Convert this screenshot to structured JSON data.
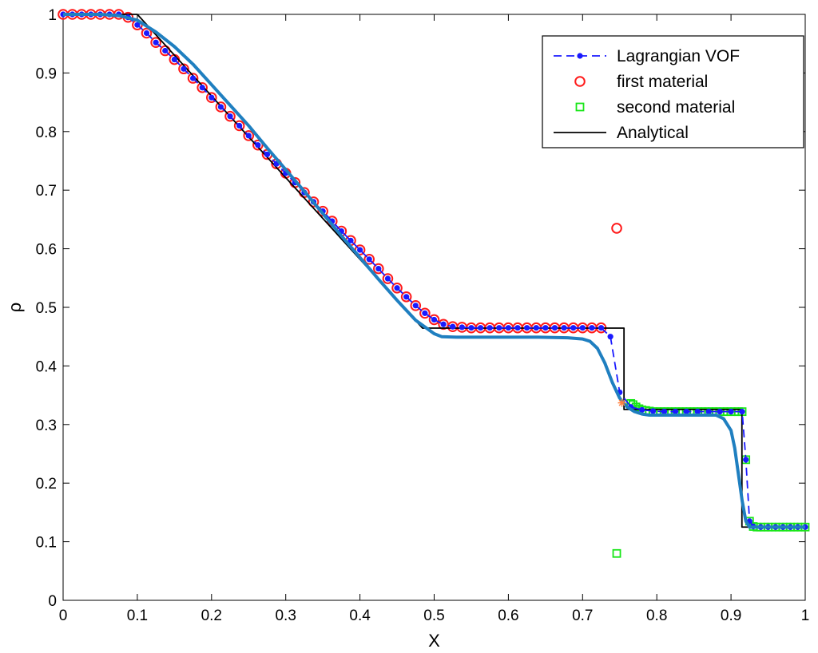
{
  "chart_data": {
    "type": "line",
    "title": "",
    "xlabel": "X",
    "ylabel": "ρ",
    "xlim": [
      0,
      1
    ],
    "ylim": [
      0,
      1
    ],
    "xticks": [
      0,
      0.1,
      0.2,
      0.3,
      0.4,
      0.5,
      0.6,
      0.7,
      0.8,
      0.9,
      1
    ],
    "xtick_labels": [
      "0",
      "0.1",
      "0.2",
      "0.3",
      "0.4",
      "0.5",
      "0.6",
      "0.7",
      "0.8",
      "0.9",
      "1"
    ],
    "yticks": [
      0,
      0.1,
      0.2,
      0.3,
      0.4,
      0.5,
      0.6,
      0.7,
      0.8,
      0.9,
      1
    ],
    "ytick_labels": [
      "0",
      "0.1",
      "0.2",
      "0.3",
      "0.4",
      "0.5",
      "0.6",
      "0.7",
      "0.8",
      "0.9",
      "1"
    ],
    "grid": false,
    "legend_position": "top-right",
    "colors": {
      "lagrangian": "#1a1aff",
      "first": "#ff1a1a",
      "second": "#19e619",
      "analytical": "#000000",
      "smooth": "#1f7fc0",
      "marker": "#ff8040"
    },
    "series": [
      {
        "name": "Lagrangian VOF",
        "style": "dashed-dot",
        "x": [
          0,
          0.0125,
          0.025,
          0.0375,
          0.05,
          0.0625,
          0.075,
          0.0875,
          0.1,
          0.1125,
          0.125,
          0.1375,
          0.15,
          0.1625,
          0.175,
          0.1875,
          0.2,
          0.2125,
          0.225,
          0.2375,
          0.25,
          0.2625,
          0.275,
          0.2875,
          0.3,
          0.3125,
          0.325,
          0.3375,
          0.35,
          0.3625,
          0.375,
          0.3875,
          0.4,
          0.4125,
          0.425,
          0.4375,
          0.45,
          0.4625,
          0.475,
          0.4875,
          0.5,
          0.5125,
          0.525,
          0.5375,
          0.55,
          0.5625,
          0.575,
          0.5875,
          0.6,
          0.6125,
          0.625,
          0.6375,
          0.65,
          0.6625,
          0.675,
          0.6875,
          0.7,
          0.7125,
          0.725,
          0.7375,
          0.75,
          0.765,
          0.78,
          0.795,
          0.81,
          0.825,
          0.84,
          0.855,
          0.87,
          0.885,
          0.9,
          0.915,
          0.92,
          0.925,
          0.93,
          0.94,
          0.95,
          0.96,
          0.97,
          0.98,
          0.99,
          1.0
        ],
        "y": [
          1,
          1,
          1,
          1,
          1,
          1,
          1,
          0.995,
          0.982,
          0.968,
          0.952,
          0.938,
          0.923,
          0.907,
          0.891,
          0.875,
          0.858,
          0.842,
          0.826,
          0.81,
          0.793,
          0.777,
          0.761,
          0.745,
          0.729,
          0.713,
          0.696,
          0.68,
          0.664,
          0.647,
          0.63,
          0.614,
          0.598,
          0.582,
          0.566,
          0.549,
          0.533,
          0.518,
          0.503,
          0.49,
          0.479,
          0.471,
          0.467,
          0.466,
          0.465,
          0.465,
          0.465,
          0.465,
          0.465,
          0.465,
          0.465,
          0.465,
          0.465,
          0.465,
          0.465,
          0.465,
          0.465,
          0.465,
          0.465,
          0.45,
          0.355,
          0.33,
          0.325,
          0.323,
          0.322,
          0.322,
          0.322,
          0.322,
          0.322,
          0.322,
          0.322,
          0.322,
          0.24,
          0.135,
          0.126,
          0.125,
          0.125,
          0.125,
          0.125,
          0.125,
          0.125,
          0.125
        ]
      },
      {
        "name": "first material",
        "style": "circle",
        "x": [
          0,
          0.0125,
          0.025,
          0.0375,
          0.05,
          0.0625,
          0.075,
          0.0875,
          0.1,
          0.1125,
          0.125,
          0.1375,
          0.15,
          0.1625,
          0.175,
          0.1875,
          0.2,
          0.2125,
          0.225,
          0.2375,
          0.25,
          0.2625,
          0.275,
          0.2875,
          0.3,
          0.3125,
          0.325,
          0.3375,
          0.35,
          0.3625,
          0.375,
          0.3875,
          0.4,
          0.4125,
          0.425,
          0.4375,
          0.45,
          0.4625,
          0.475,
          0.4875,
          0.5,
          0.5125,
          0.525,
          0.5375,
          0.55,
          0.5625,
          0.575,
          0.5875,
          0.6,
          0.6125,
          0.625,
          0.6375,
          0.65,
          0.6625,
          0.675,
          0.6875,
          0.7,
          0.7125,
          0.725,
          0.746
        ],
        "y": [
          1,
          1,
          1,
          1,
          1,
          1,
          1,
          0.995,
          0.982,
          0.968,
          0.952,
          0.938,
          0.923,
          0.907,
          0.891,
          0.875,
          0.858,
          0.842,
          0.826,
          0.81,
          0.793,
          0.777,
          0.761,
          0.745,
          0.729,
          0.713,
          0.696,
          0.68,
          0.664,
          0.647,
          0.63,
          0.614,
          0.598,
          0.582,
          0.566,
          0.549,
          0.533,
          0.518,
          0.503,
          0.49,
          0.479,
          0.471,
          0.467,
          0.466,
          0.465,
          0.465,
          0.465,
          0.465,
          0.465,
          0.465,
          0.465,
          0.465,
          0.465,
          0.465,
          0.465,
          0.465,
          0.465,
          0.465,
          0.465,
          0.635
        ]
      },
      {
        "name": "second material",
        "style": "square",
        "x": [
          0.746,
          0.765,
          0.768,
          0.772,
          0.776,
          0.78,
          0.785,
          0.79,
          0.795,
          0.8,
          0.805,
          0.81,
          0.815,
          0.82,
          0.825,
          0.83,
          0.835,
          0.84,
          0.845,
          0.85,
          0.855,
          0.86,
          0.865,
          0.87,
          0.875,
          0.88,
          0.885,
          0.89,
          0.895,
          0.9,
          0.905,
          0.91,
          0.915,
          0.92,
          0.925,
          0.93,
          0.935,
          0.94,
          0.945,
          0.95,
          0.955,
          0.96,
          0.965,
          0.97,
          0.975,
          0.98,
          0.985,
          0.99,
          0.995,
          1.0
        ],
        "y": [
          0.08,
          0.336,
          0.334,
          0.33,
          0.327,
          0.325,
          0.324,
          0.323,
          0.322,
          0.322,
          0.322,
          0.322,
          0.322,
          0.322,
          0.322,
          0.322,
          0.322,
          0.322,
          0.322,
          0.322,
          0.322,
          0.322,
          0.322,
          0.322,
          0.322,
          0.322,
          0.322,
          0.322,
          0.322,
          0.322,
          0.322,
          0.322,
          0.322,
          0.24,
          0.135,
          0.126,
          0.125,
          0.125,
          0.125,
          0.125,
          0.125,
          0.125,
          0.125,
          0.125,
          0.125,
          0.125,
          0.125,
          0.125,
          0.125,
          0.125
        ]
      },
      {
        "name": "Analytical",
        "style": "solid-thin",
        "x": [
          0,
          0.1,
          0.4843,
          0.7558,
          0.7558,
          0.9147,
          0.9147,
          1.0
        ],
        "y": [
          1,
          1,
          0.4646,
          0.4646,
          0.3256,
          0.3256,
          0.125,
          0.125
        ]
      },
      {
        "name": "",
        "style": "solid-thick",
        "x": [
          0,
          0.05,
          0.075,
          0.1,
          0.125,
          0.15,
          0.175,
          0.2,
          0.225,
          0.25,
          0.275,
          0.3,
          0.325,
          0.35,
          0.375,
          0.4,
          0.425,
          0.45,
          0.475,
          0.5,
          0.51,
          0.53,
          0.56,
          0.6,
          0.64,
          0.68,
          0.7,
          0.71,
          0.72,
          0.73,
          0.74,
          0.75,
          0.76,
          0.77,
          0.78,
          0.79,
          0.8,
          0.82,
          0.85,
          0.88,
          0.89,
          0.9,
          0.905,
          0.91,
          0.915,
          0.92,
          0.925,
          0.93,
          0.95,
          1.0
        ],
        "y": [
          1,
          1,
          0.998,
          0.99,
          0.97,
          0.945,
          0.915,
          0.88,
          0.845,
          0.81,
          0.772,
          0.735,
          0.698,
          0.66,
          0.622,
          0.585,
          0.548,
          0.512,
          0.478,
          0.455,
          0.45,
          0.449,
          0.449,
          0.449,
          0.449,
          0.448,
          0.446,
          0.442,
          0.43,
          0.405,
          0.372,
          0.345,
          0.33,
          0.322,
          0.318,
          0.316,
          0.316,
          0.316,
          0.316,
          0.316,
          0.31,
          0.29,
          0.26,
          0.215,
          0.17,
          0.135,
          0.125,
          0.125,
          0.125,
          0.125
        ]
      },
      {
        "name": "",
        "style": "star",
        "x": [
          0.753
        ],
        "y": [
          0.337
        ]
      }
    ]
  }
}
